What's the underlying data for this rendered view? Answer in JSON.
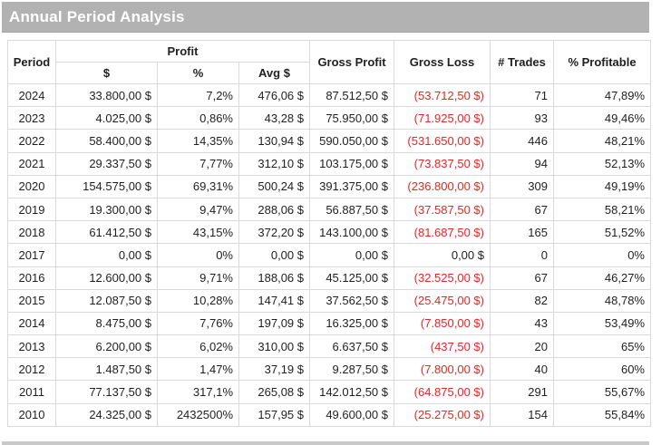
{
  "title": "Annual Period Analysis",
  "colors": {
    "title_bar_bg": "#b2b2b2",
    "title_text": "#ffffff",
    "grid_border": "#d9d9d9",
    "text": "#1f1f1f",
    "negative": "#ee2222",
    "footer_line": "#c9c9c9",
    "page_bg": "#ffffff"
  },
  "table": {
    "header": {
      "period": "Period",
      "profit_group": "Profit",
      "profit_sub": [
        "$",
        "%",
        "Avg $"
      ],
      "gross_profit": "Gross Profit",
      "gross_loss": "Gross Loss",
      "trades": "# Trades",
      "profitable": "% Profitable"
    },
    "rows": [
      {
        "period": "2024",
        "profit_usd": "33.800,00 $",
        "profit_pct": "7,2%",
        "avg_usd": "476,06 $",
        "gross_profit": "87.512,50 $",
        "gross_loss": "(53.712,50 $)",
        "trades": "71",
        "profitable": "47,89%"
      },
      {
        "period": "2023",
        "profit_usd": "4.025,00 $",
        "profit_pct": "0,86%",
        "avg_usd": "43,28 $",
        "gross_profit": "75.950,00 $",
        "gross_loss": "(71.925,00 $)",
        "trades": "93",
        "profitable": "49,46%"
      },
      {
        "period": "2022",
        "profit_usd": "58.400,00 $",
        "profit_pct": "14,35%",
        "avg_usd": "130,94 $",
        "gross_profit": "590.050,00 $",
        "gross_loss": "(531.650,00 $)",
        "trades": "446",
        "profitable": "48,21%"
      },
      {
        "period": "2021",
        "profit_usd": "29.337,50 $",
        "profit_pct": "7,77%",
        "avg_usd": "312,10 $",
        "gross_profit": "103.175,00 $",
        "gross_loss": "(73.837,50 $)",
        "trades": "94",
        "profitable": "52,13%"
      },
      {
        "period": "2020",
        "profit_usd": "154.575,00 $",
        "profit_pct": "69,31%",
        "avg_usd": "500,24 $",
        "gross_profit": "391.375,00 $",
        "gross_loss": "(236.800,00 $)",
        "trades": "309",
        "profitable": "49,19%"
      },
      {
        "period": "2019",
        "profit_usd": "19.300,00 $",
        "profit_pct": "9,47%",
        "avg_usd": "288,06 $",
        "gross_profit": "56.887,50 $",
        "gross_loss": "(37.587,50 $)",
        "trades": "67",
        "profitable": "58,21%"
      },
      {
        "period": "2018",
        "profit_usd": "61.412,50 $",
        "profit_pct": "43,15%",
        "avg_usd": "372,20 $",
        "gross_profit": "143.100,00 $",
        "gross_loss": "(81.687,50 $)",
        "trades": "165",
        "profitable": "51,52%"
      },
      {
        "period": "2017",
        "profit_usd": "0,00 $",
        "profit_pct": "0%",
        "avg_usd": "0,00 $",
        "gross_profit": "0,00 $",
        "gross_loss": "0,00 $",
        "trades": "0",
        "profitable": "0%"
      },
      {
        "period": "2016",
        "profit_usd": "12.600,00 $",
        "profit_pct": "9,71%",
        "avg_usd": "188,06 $",
        "gross_profit": "45.125,00 $",
        "gross_loss": "(32.525,00 $)",
        "trades": "67",
        "profitable": "46,27%"
      },
      {
        "period": "2015",
        "profit_usd": "12.087,50 $",
        "profit_pct": "10,28%",
        "avg_usd": "147,41 $",
        "gross_profit": "37.562,50 $",
        "gross_loss": "(25.475,00 $)",
        "trades": "82",
        "profitable": "48,78%"
      },
      {
        "period": "2014",
        "profit_usd": "8.475,00 $",
        "profit_pct": "7,76%",
        "avg_usd": "197,09 $",
        "gross_profit": "16.325,00 $",
        "gross_loss": "(7.850,00 $)",
        "trades": "43",
        "profitable": "53,49%"
      },
      {
        "period": "2013",
        "profit_usd": "6.200,00 $",
        "profit_pct": "6,02%",
        "avg_usd": "310,00 $",
        "gross_profit": "6.637,50 $",
        "gross_loss": "(437,50 $)",
        "trades": "20",
        "profitable": "65%"
      },
      {
        "period": "2012",
        "profit_usd": "1.487,50 $",
        "profit_pct": "1,47%",
        "avg_usd": "37,19 $",
        "gross_profit": "9.287,50 $",
        "gross_loss": "(7.800,00 $)",
        "trades": "40",
        "profitable": "60%"
      },
      {
        "period": "2011",
        "profit_usd": "77.137,50 $",
        "profit_pct": "317,1%",
        "avg_usd": "265,08 $",
        "gross_profit": "142.012,50 $",
        "gross_loss": "(64.875,00 $)",
        "trades": "291",
        "profitable": "55,67%"
      },
      {
        "period": "2010",
        "profit_usd": "24.325,00 $",
        "profit_pct": "2432500%",
        "avg_usd": "157,95 $",
        "gross_profit": "49.600,00 $",
        "gross_loss": "(25.275,00 $)",
        "trades": "154",
        "profitable": "55,84%"
      }
    ]
  }
}
